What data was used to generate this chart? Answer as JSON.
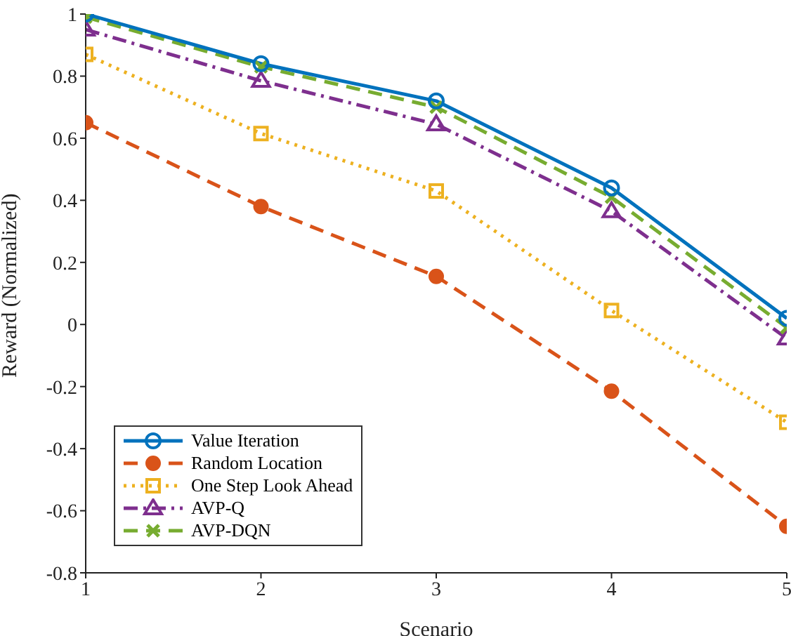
{
  "chart_data": {
    "type": "line",
    "xlabel": "Scenario",
    "ylabel": "Reward (Normalized)",
    "x": [
      1,
      2,
      3,
      4,
      5
    ],
    "xlim": [
      1,
      5
    ],
    "xticks": [
      1,
      2,
      3,
      4,
      5
    ],
    "ylim": [
      -0.8,
      1
    ],
    "yticks": [
      -0.8,
      -0.6,
      -0.4,
      -0.2,
      0,
      0.2,
      0.4,
      0.6,
      0.8,
      1
    ],
    "legend": "bottom left",
    "series": [
      {
        "name": "Value Iteration",
        "color": "#0072bd",
        "marker": "circle",
        "line_style": "solid",
        "values": [
          1.0,
          0.84,
          0.72,
          0.44,
          0.02
        ]
      },
      {
        "name": "Random Location",
        "color": "#d95319",
        "marker": "circle",
        "line_style": "dashed",
        "values": [
          0.65,
          0.38,
          0.155,
          -0.215,
          -0.65
        ]
      },
      {
        "name": "One Step Look Ahead",
        "color": "#edb120",
        "marker": "square",
        "line_style": "dotted",
        "values": [
          0.87,
          0.615,
          0.43,
          0.045,
          -0.315
        ]
      },
      {
        "name": "AVP-Q",
        "color": "#7e2f8e",
        "marker": "triangle",
        "line_style": "dashdot",
        "values": [
          0.95,
          0.785,
          0.645,
          0.365,
          -0.045
        ]
      },
      {
        "name": "AVP-DQN",
        "color": "#77ac30",
        "marker": "cross",
        "line_style": "dashed",
        "values": [
          0.99,
          0.83,
          0.7,
          0.41,
          -0.01
        ]
      }
    ]
  }
}
